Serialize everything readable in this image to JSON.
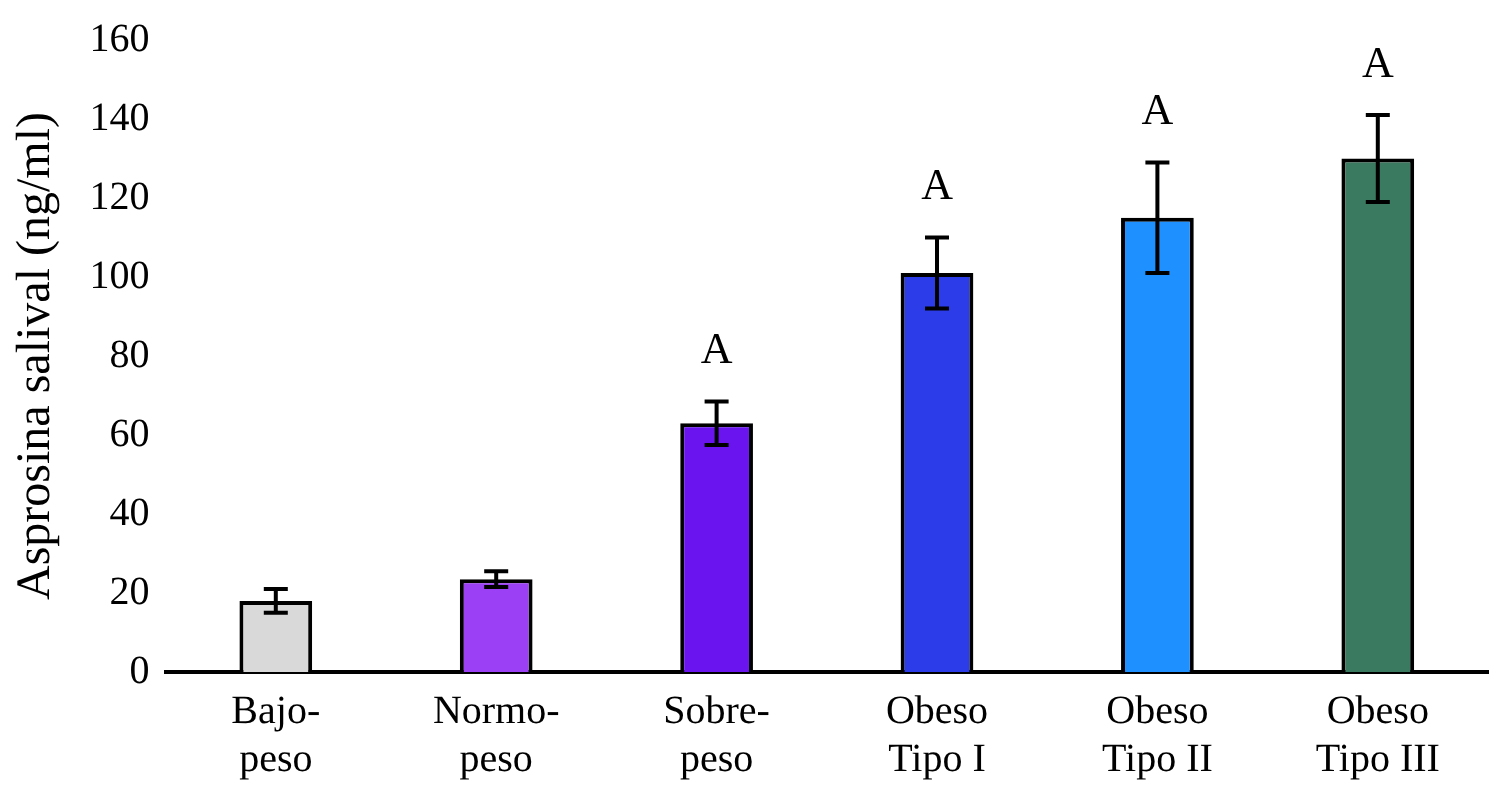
{
  "chart_data": {
    "type": "bar",
    "ylabel": "Asprosina salival (ng/ml)",
    "categories": [
      "Bajo-\npeso",
      "Normo-\npeso",
      "Sobre-\npeso",
      "Obeso\nTipo I",
      "Obeso\nTipo II",
      "Obeso\nTipo III"
    ],
    "values": [
      18,
      23.5,
      63,
      101,
      115,
      130
    ],
    "colors": [
      "#d9d9d9",
      "#9b40f5",
      "#6a14f0",
      "#2b3ce8",
      "#1e90ff",
      "#3a7a60"
    ],
    "errors": [
      3,
      2,
      5.5,
      9,
      14,
      11
    ],
    "ylim": [
      0,
      160
    ],
    "yticks": [
      0,
      20,
      40,
      60,
      80,
      100,
      120,
      140,
      160
    ],
    "grid": false,
    "legend": false,
    "annotations": [
      "A",
      "A",
      "A",
      "A"
    ]
  }
}
